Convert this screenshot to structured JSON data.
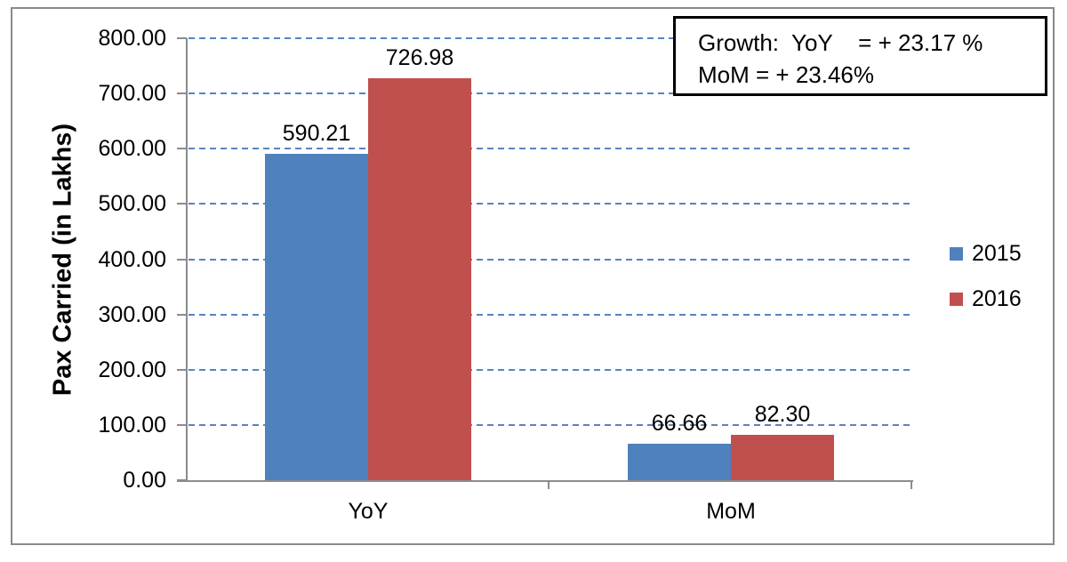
{
  "chart_data": {
    "type": "bar",
    "title": "",
    "xlabel": "",
    "ylabel": "Pax Carried (in Lakhs)",
    "categories": [
      "YoY",
      "MoM"
    ],
    "series": [
      {
        "name": "2015",
        "color": "#4F81BD",
        "values": [
          590.21,
          66.66
        ]
      },
      {
        "name": "2016",
        "color": "#C0504D",
        "values": [
          726.98,
          82.3
        ]
      }
    ],
    "value_labels": [
      [
        "590.21",
        "66.66"
      ],
      [
        "726.98",
        "82.30"
      ]
    ],
    "ylim": [
      0,
      800
    ],
    "ytick_step": 100,
    "ytick_labels": [
      "0.00",
      "100.00",
      "200.00",
      "300.00",
      "400.00",
      "500.00",
      "600.00",
      "700.00",
      "800.00"
    ],
    "grid": "horizontal-dashed",
    "gridline_color": "#5585C1",
    "axis_color": "#8C8C8C",
    "legend_position": "right",
    "annotation": {
      "line1": "Growth:  YoY    = + 23.17 %",
      "line2": "MoM = + 23.46%"
    }
  }
}
